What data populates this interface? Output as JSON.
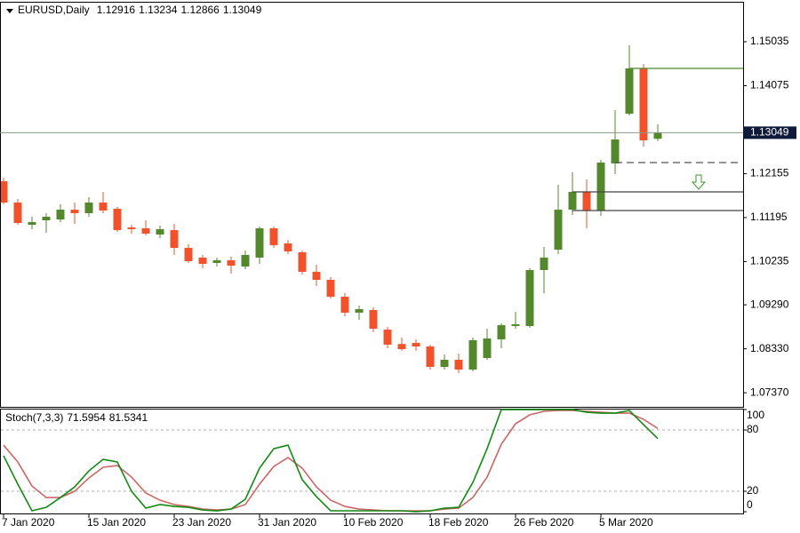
{
  "chart_data": [
    {
      "type": "candlestick",
      "title": "EURUSD,Daily",
      "categories": [
        "7 Jan 2020",
        null,
        null,
        null,
        null,
        null,
        "15 Jan 2020",
        null,
        null,
        null,
        null,
        null,
        "23 Jan 2020",
        null,
        null,
        null,
        null,
        null,
        "31 Jan 2020",
        null,
        null,
        null,
        null,
        null,
        "10 Feb 2020",
        null,
        null,
        null,
        null,
        null,
        "18 Feb 2020",
        null,
        null,
        null,
        null,
        null,
        "26 Feb 2020",
        null,
        null,
        null,
        null,
        null,
        "5 Mar 2020",
        null,
        null,
        null,
        null
      ],
      "open": [
        1.11989,
        1.11524,
        1.11039,
        1.11136,
        1.11155,
        1.11368,
        1.11291,
        1.11524,
        1.11388,
        1.1098,
        1.10961,
        1.10825,
        1.10922,
        1.10534,
        1.10321,
        1.10204,
        1.10263,
        1.10127,
        1.10321,
        1.10961,
        1.10631,
        1.10437,
        1.1001,
        1.09836,
        1.09467,
        1.09118,
        1.09176,
        1.08749,
        1.08435,
        1.08458,
        1.08381,
        1.07935,
        1.0809,
        1.07876,
        1.08129,
        1.08536,
        1.08827,
        1.08827,
        1.10049,
        1.10495,
        1.11368,
        1.11756,
        1.11349,
        1.12377,
        1.13464,
        1.14453,
        1.12916
      ],
      "high": [
        1.12067,
        1.11601,
        1.11213,
        1.11291,
        1.11485,
        1.11524,
        1.1164,
        1.11756,
        1.11427,
        1.11039,
        1.11136,
        1.11019,
        1.11058,
        1.10612,
        1.10379,
        1.10321,
        1.1034,
        1.10476,
        1.11,
        1.11,
        1.10709,
        1.10476,
        1.10166,
        1.09894,
        1.09545,
        1.09273,
        1.09234,
        1.08808,
        1.08575,
        1.08536,
        1.0842,
        1.08206,
        1.08226,
        1.08575,
        1.08769,
        1.08885,
        1.09137,
        1.10088,
        1.10554,
        1.11912,
        1.12183,
        1.12028,
        1.12455,
        1.13541,
        1.14957,
        1.1455,
        1.13234
      ],
      "low": [
        1.11485,
        1.11039,
        1.10942,
        1.10864,
        1.11097,
        1.11058,
        1.11213,
        1.11291,
        1.10883,
        1.10845,
        1.10806,
        1.10748,
        1.10379,
        1.10204,
        1.10088,
        1.10127,
        1.09972,
        1.10069,
        1.10185,
        1.10534,
        1.10398,
        1.09952,
        1.097,
        1.09428,
        1.0904,
        1.08963,
        1.08691,
        1.08342,
        1.08284,
        1.08284,
        1.07876,
        1.07876,
        1.07799,
        1.07838,
        1.0809,
        1.08342,
        1.08769,
        1.08788,
        1.09545,
        1.10398,
        1.11252,
        1.10961,
        1.11233,
        1.12144,
        1.13425,
        1.12746,
        1.12866
      ],
      "close": [
        1.11524,
        1.11077,
        1.11097,
        1.11213,
        1.11368,
        1.11291,
        1.11524,
        1.11349,
        1.10922,
        1.10942,
        1.10845,
        1.10942,
        1.10534,
        1.10243,
        1.10185,
        1.10263,
        1.10146,
        1.10379,
        1.10961,
        1.10592,
        1.10457,
        1.1001,
        1.09836,
        1.09467,
        1.09118,
        1.09196,
        1.08769,
        1.0842,
        1.08323,
        1.08381,
        1.07935,
        1.0809,
        1.07876,
        1.08517,
        1.08555,
        1.08846,
        1.08866,
        1.10049,
        1.10321,
        1.11368,
        1.11756,
        1.11349,
        1.12397,
        1.12901,
        1.14453,
        1.12882,
        1.13049
      ],
      "up_color": "#53882d",
      "down_color": "#f0522c",
      "ylim": [
        1.07062,
        1.15908
      ],
      "yticks": [
        1.15035,
        1.14075,
        1.12155,
        1.11195,
        1.10235,
        {
          "value": 1.0929,
          "label": "1.09290"
        },
        {
          "value": 1.0833,
          "label": "1.08330"
        },
        {
          "value": 1.0737,
          "label": "1.07370"
        }
      ]
    },
    {
      "type": "line",
      "title": "Stoch(7,3,3)",
      "series": [
        {
          "color": "#128a12",
          "values": [
            54.8,
            27.0,
            0.9,
            4.3,
            13.9,
            24.3,
            40.0,
            51.3,
            48.7,
            20.0,
            3.5,
            7.0,
            5.2,
            4.3,
            1.7,
            0.9,
            2.6,
            12.2,
            42.6,
            61.7,
            65.2,
            31.3,
            14.8,
            0.9,
            0.9,
            0.9,
            0.9,
            0.9,
            0.9,
            0,
            0.9,
            3.5,
            4.3,
            28.7,
            61.7,
            100,
            100,
            100,
            100,
            100,
            100,
            97.4,
            96.5,
            96.5,
            99.1,
            85.2,
            71.5954
          ]
        },
        {
          "color": "#cd6666",
          "values": [
            65.2,
            48.7,
            25.2,
            13.9,
            13.9,
            20.0,
            33.0,
            43.5,
            45.2,
            33.9,
            18.3,
            11.3,
            7.0,
            5.2,
            2.6,
            1.7,
            2.6,
            7.0,
            27.0,
            44.3,
            53.0,
            42.6,
            24.3,
            11.3,
            5.2,
            2.6,
            1.7,
            0.9,
            0.9,
            0.9,
            0.9,
            2.6,
            3.5,
            13.9,
            33.9,
            66.1,
            86.1,
            94.8,
            98.3,
            99.1,
            99.1,
            98.3,
            97.4,
            96.5,
            96.5,
            90.4,
            81.5341
          ]
        }
      ],
      "ylim": [
        -1.7,
        100.9
      ],
      "yticks": [
        0,
        20,
        80,
        100
      ],
      "levels": [
        20,
        80
      ]
    }
  ]
}
